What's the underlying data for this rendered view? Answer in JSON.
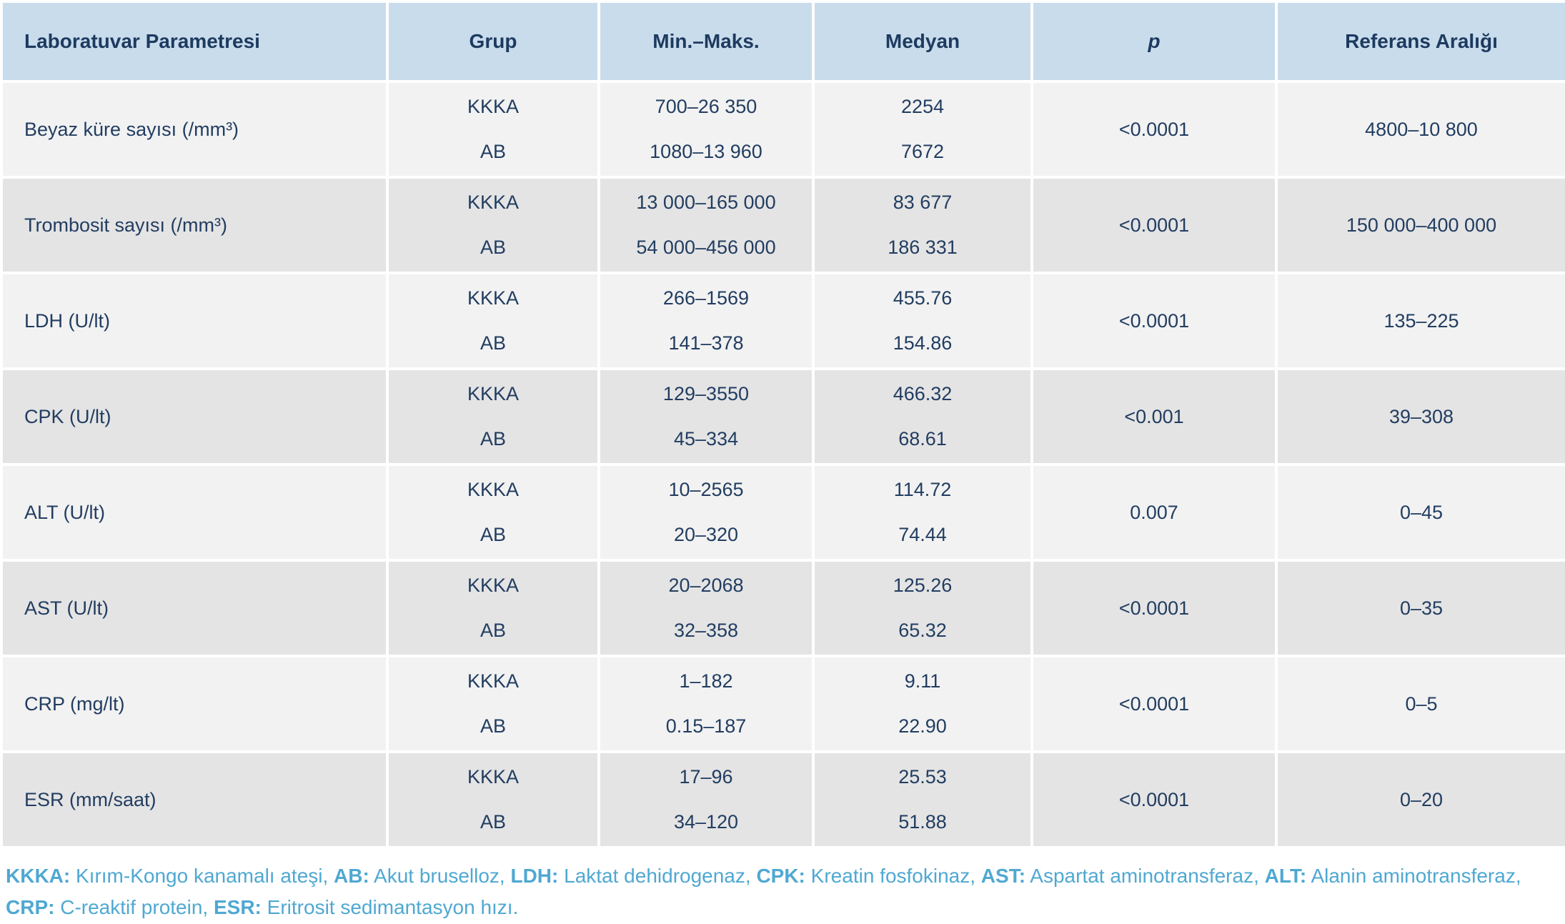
{
  "table": {
    "columns": [
      "Laboratuvar Parametresi",
      "Grup",
      "Min.–Maks.",
      "Medyan",
      "p",
      "Referans Aralığı"
    ],
    "rows": [
      {
        "parameter": "Beyaz küre sayısı (/mm³)",
        "groups": [
          {
            "grup": "KKKA",
            "min_maks": "700–26 350",
            "medyan": "2254"
          },
          {
            "grup": "AB",
            "min_maks": "1080–13 960",
            "medyan": "7672"
          }
        ],
        "p": "<0.0001",
        "referans": "4800–10 800"
      },
      {
        "parameter": "Trombosit sayısı (/mm³)",
        "groups": [
          {
            "grup": "KKKA",
            "min_maks": "13 000–165 000",
            "medyan": "83 677"
          },
          {
            "grup": "AB",
            "min_maks": "54 000–456 000",
            "medyan": "186 331"
          }
        ],
        "p": "<0.0001",
        "referans": "150 000–400 000"
      },
      {
        "parameter": "LDH (U/lt)",
        "groups": [
          {
            "grup": "KKKA",
            "min_maks": "266–1569",
            "medyan": "455.76"
          },
          {
            "grup": "AB",
            "min_maks": "141–378",
            "medyan": "154.86"
          }
        ],
        "p": "<0.0001",
        "referans": "135–225"
      },
      {
        "parameter": "CPK (U/lt)",
        "groups": [
          {
            "grup": "KKKA",
            "min_maks": "129–3550",
            "medyan": "466.32"
          },
          {
            "grup": "AB",
            "min_maks": "45–334",
            "medyan": "68.61"
          }
        ],
        "p": "<0.001",
        "referans": "39–308"
      },
      {
        "parameter": "ALT (U/lt)",
        "groups": [
          {
            "grup": "KKKA",
            "min_maks": "10–2565",
            "medyan": "114.72"
          },
          {
            "grup": "AB",
            "min_maks": "20–320",
            "medyan": "74.44"
          }
        ],
        "p": "0.007",
        "referans": "0–45"
      },
      {
        "parameter": "AST (U/lt)",
        "groups": [
          {
            "grup": "KKKA",
            "min_maks": "20–2068",
            "medyan": "125.26"
          },
          {
            "grup": "AB",
            "min_maks": "32–358",
            "medyan": "65.32"
          }
        ],
        "p": "<0.0001",
        "referans": "0–35"
      },
      {
        "parameter": "CRP (mg/lt)",
        "groups": [
          {
            "grup": "KKKA",
            "min_maks": "1–182",
            "medyan": "9.11"
          },
          {
            "grup": "AB",
            "min_maks": "0.15–187",
            "medyan": "22.90"
          }
        ],
        "p": "<0.0001",
        "referans": "0–5"
      },
      {
        "parameter": "ESR (mm/saat)",
        "groups": [
          {
            "grup": "KKKA",
            "min_maks": "17–96",
            "medyan": "25.53"
          },
          {
            "grup": "AB",
            "min_maks": "34–120",
            "medyan": "51.88"
          }
        ],
        "p": "<0.0001",
        "referans": "0–20"
      }
    ]
  },
  "footnote": {
    "parts": [
      {
        "abbr": "KKKA:",
        "text": " Kırım-Kongo kanamalı ateşi, "
      },
      {
        "abbr": "AB:",
        "text": " Akut bruselloz, "
      },
      {
        "abbr": "LDH:",
        "text": " Laktat dehidrogenaz, "
      },
      {
        "abbr": "CPK:",
        "text": " Kreatin fosfokinaz, "
      },
      {
        "abbr": "AST:",
        "text": " Aspartat aminotransferaz, "
      },
      {
        "abbr": "ALT:",
        "text": " Alanin aminotransferaz, "
      },
      {
        "abbr": "CRP:",
        "text": " C-reaktif protein, "
      },
      {
        "abbr": "ESR:",
        "text": " Eritrosit sedimantasyon hızı."
      }
    ]
  },
  "colors": {
    "header_bg": "#c9dcec",
    "row_odd_bg": "#f2f2f2",
    "row_even_bg": "#e4e4e4",
    "text_navy": "#223d61",
    "footnote_blue": "#4fa8d2",
    "grid_white": "#ffffff"
  }
}
